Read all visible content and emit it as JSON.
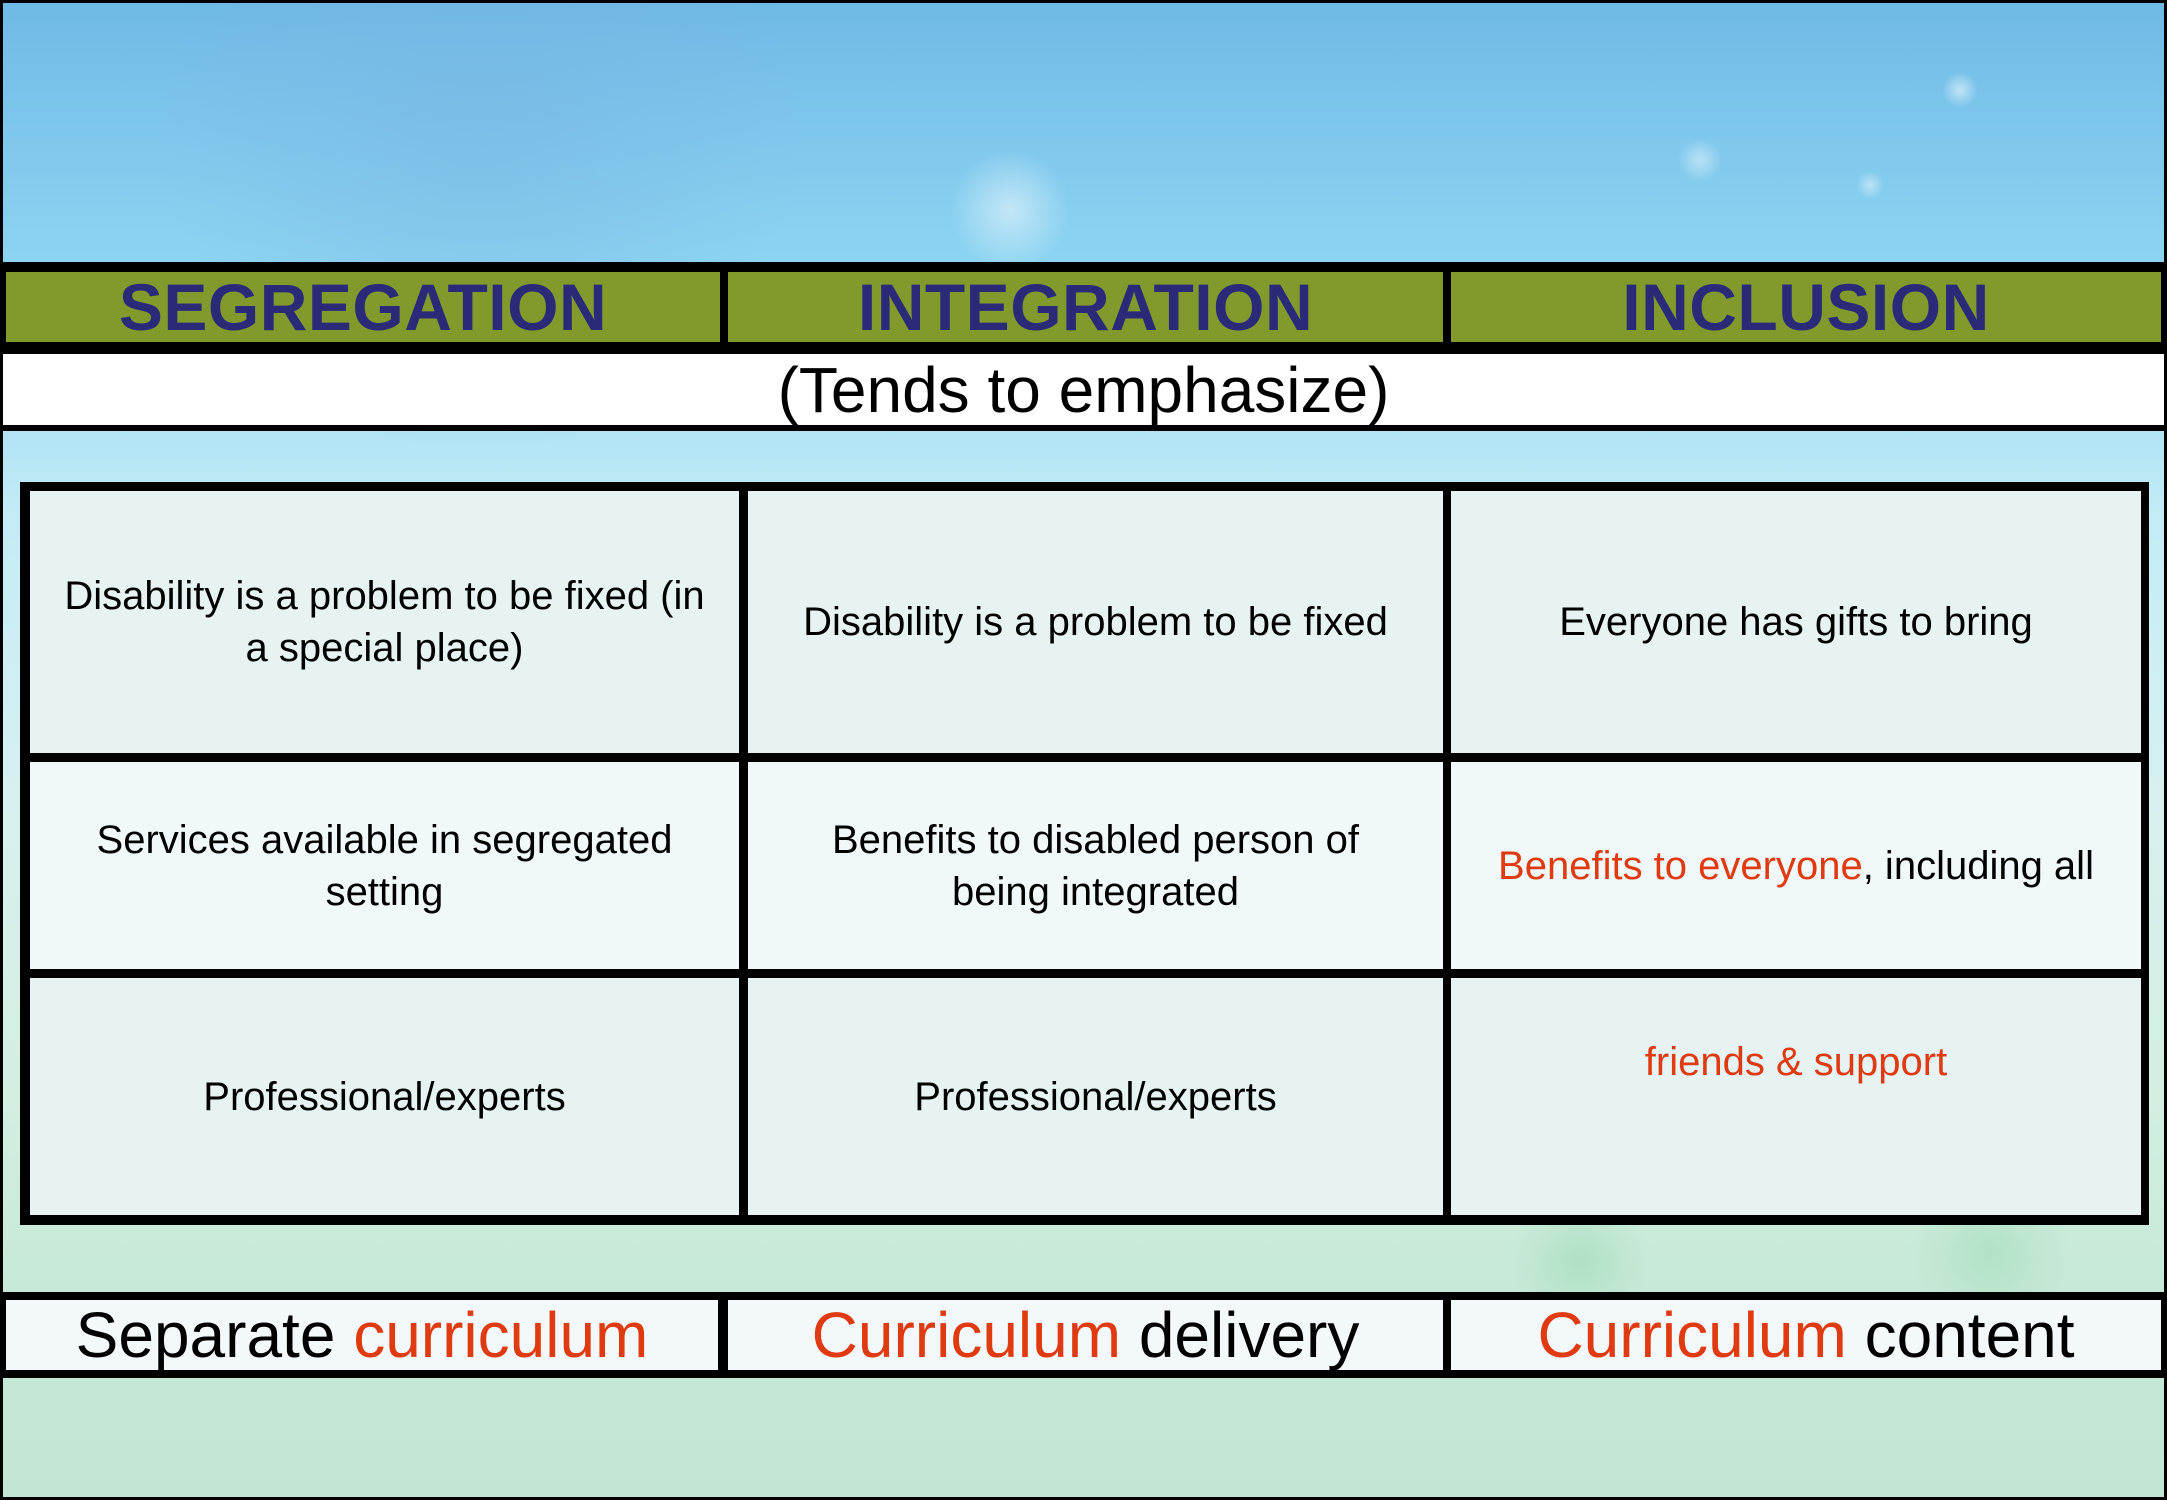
{
  "headers": {
    "segregation": "SEGREGATION",
    "integration": "INTEGRATION",
    "inclusion": "INCLUSION"
  },
  "emphasis_label": "(Tends to emphasize)",
  "rows": [
    {
      "segregation": "Disability is a problem to be fixed (in a special place)",
      "integration": "Disability is a problem to be fixed",
      "inclusion": "Everyone has gifts to bring"
    },
    {
      "segregation": "Services available in segregated setting",
      "integration": "Benefits to disabled person of being integrated",
      "inclusion_highlight": "Benefits to everyone",
      "inclusion_rest": ", including all"
    },
    {
      "segregation": "Professional/experts",
      "integration": "Professional/experts",
      "inclusion": "friends & support"
    }
  ],
  "footer": {
    "segregation_prefix": "Separate ",
    "segregation_highlight": "curriculum",
    "integration_highlight": "Curriculum",
    "integration_suffix": " delivery",
    "inclusion_highlight": "Curriculum",
    "inclusion_suffix": " content"
  },
  "colors": {
    "header_bg": "#829a2c",
    "header_text": "#2a2a78",
    "highlight_red": "#e03a10"
  }
}
